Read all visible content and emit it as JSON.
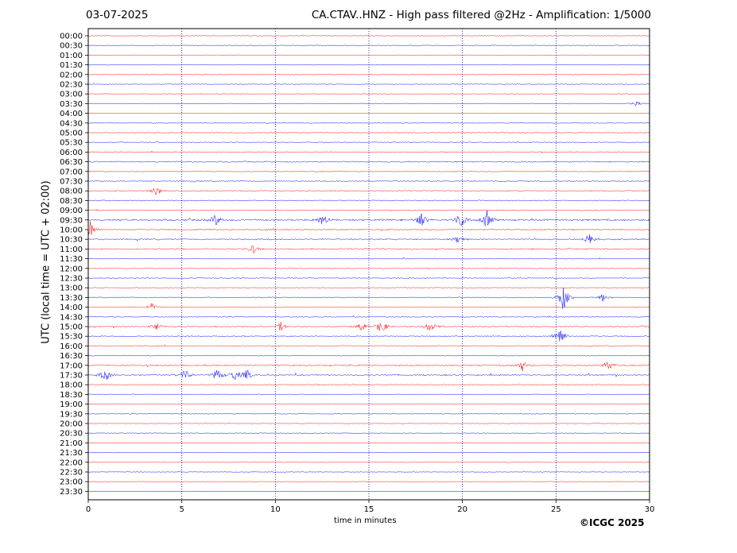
{
  "header": {
    "date": "03-07-2025",
    "title": "CA.CTAV..HNZ - High pass filtered @2Hz - Amplification: 1/5000"
  },
  "copyright": "©ICGC 2025",
  "chart_data": {
    "type": "line",
    "title": "CA.CTAV..HNZ - High pass filtered @2Hz - Amplification: 1/5000",
    "xlabel": "time in minutes",
    "ylabel": "UTC (local time = UTC + 02:00)",
    "xlim": [
      0,
      30
    ],
    "xticks": [
      "0",
      "5",
      "10",
      "15",
      "20",
      "25",
      "30"
    ],
    "grid": "vertical dotted at every 5 minutes",
    "colors": {
      "even": "#ff0000",
      "odd": "#0000ff",
      "grid": "#000080"
    },
    "rows": [
      "00:00",
      "00:30",
      "01:00",
      "01:30",
      "02:00",
      "02:30",
      "03:00",
      "03:30",
      "04:00",
      "04:30",
      "05:00",
      "05:30",
      "06:00",
      "06:30",
      "07:00",
      "07:30",
      "08:00",
      "08:30",
      "09:00",
      "09:30",
      "10:00",
      "10:30",
      "11:00",
      "11:30",
      "12:00",
      "12:30",
      "13:00",
      "13:30",
      "14:00",
      "14:30",
      "15:00",
      "15:30",
      "16:00",
      "16:30",
      "17:00",
      "17:30",
      "18:00",
      "18:30",
      "19:00",
      "19:30",
      "20:00",
      "20:30",
      "21:00",
      "21:30",
      "22:00",
      "22:30",
      "23:00",
      "23:30"
    ],
    "activity": [
      0.2,
      0.2,
      0.15,
      0.15,
      0.15,
      0.15,
      0.2,
      0.25,
      0.15,
      0.25,
      0.35,
      0.3,
      0.35,
      0.5,
      0.4,
      0.45,
      0.4,
      0.35,
      0.35,
      0.9,
      0.6,
      0.6,
      0.6,
      0.3,
      0.3,
      0.3,
      0.3,
      0.35,
      0.35,
      0.35,
      0.55,
      0.45,
      0.45,
      0.3,
      0.7,
      0.6,
      0.3,
      0.3,
      0.25,
      0.2,
      0.2,
      0.2,
      0.15,
      0.15,
      0.15,
      0.1,
      0.05,
      0.05
    ],
    "events": [
      {
        "row": "03:30",
        "minute": 29.3,
        "amp": 4
      },
      {
        "row": "08:00",
        "minute": 3.6,
        "amp": 9
      },
      {
        "row": "09:30",
        "minute": 6.8,
        "amp": 8
      },
      {
        "row": "09:30",
        "minute": 12.5,
        "amp": 9
      },
      {
        "row": "09:30",
        "minute": 17.8,
        "amp": 9
      },
      {
        "row": "09:30",
        "minute": 19.9,
        "amp": 11
      },
      {
        "row": "09:30",
        "minute": 21.3,
        "amp": 12
      },
      {
        "row": "10:00",
        "minute": 0.1,
        "amp": 12
      },
      {
        "row": "10:30",
        "minute": 19.8,
        "amp": 6
      },
      {
        "row": "10:30",
        "minute": 26.8,
        "amp": 9
      },
      {
        "row": "11:00",
        "minute": 8.8,
        "amp": 6
      },
      {
        "row": "13:30",
        "minute": 25.4,
        "amp": 18
      },
      {
        "row": "13:30",
        "minute": 27.5,
        "amp": 7
      },
      {
        "row": "14:00",
        "minute": 3.4,
        "amp": 6
      },
      {
        "row": "15:00",
        "minute": 3.6,
        "amp": 6
      },
      {
        "row": "15:00",
        "minute": 10.3,
        "amp": 6
      },
      {
        "row": "15:00",
        "minute": 14.6,
        "amp": 6
      },
      {
        "row": "15:00",
        "minute": 15.7,
        "amp": 10
      },
      {
        "row": "15:00",
        "minute": 18.3,
        "amp": 9
      },
      {
        "row": "15:30",
        "minute": 25.2,
        "amp": 16
      },
      {
        "row": "17:00",
        "minute": 23.2,
        "amp": 7
      },
      {
        "row": "17:00",
        "minute": 27.8,
        "amp": 7
      },
      {
        "row": "17:30",
        "minute": 0.9,
        "amp": 10
      },
      {
        "row": "17:30",
        "minute": 5.2,
        "amp": 8
      },
      {
        "row": "17:30",
        "minute": 6.9,
        "amp": 9
      },
      {
        "row": "17:30",
        "minute": 7.8,
        "amp": 8
      },
      {
        "row": "17:30",
        "minute": 8.5,
        "amp": 8
      }
    ]
  }
}
